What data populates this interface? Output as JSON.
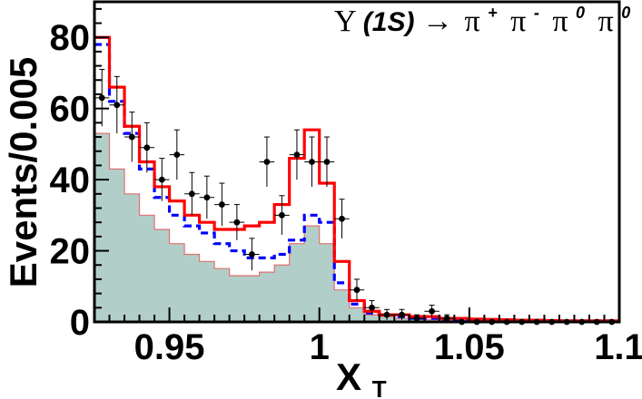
{
  "chart_data": {
    "type": "histogram",
    "title_parts": {
      "upsilon": "Υ",
      "state": "(1S)",
      "arrow": "→",
      "pi1": "π",
      "sup1": "+",
      "pi2": "π",
      "sup2": "-",
      "pi3": "π",
      "sup3": "0",
      "pi4": "π",
      "sup4": "0"
    },
    "xlabel": "X",
    "xlabel_sub": "T",
    "ylabel": "Events/0.005",
    "xlim": [
      0.925,
      1.1
    ],
    "ylim": [
      0,
      90
    ],
    "bin_width": 0.005,
    "x_ticks": [
      0.95,
      1.0,
      1.05,
      1.1
    ],
    "x_tick_labels": [
      "0.95",
      "1",
      "1.05",
      "1.1"
    ],
    "y_ticks": [
      0,
      20,
      40,
      60,
      80
    ],
    "y_tick_labels": [
      "0",
      "20",
      "40",
      "60",
      "80"
    ],
    "bin_centers": [
      0.9275,
      0.9325,
      0.9375,
      0.9425,
      0.9475,
      0.9525,
      0.9575,
      0.9625,
      0.9675,
      0.9725,
      0.9775,
      0.9825,
      0.9875,
      0.9925,
      0.9975,
      1.0025,
      1.0075,
      1.0125,
      1.0175,
      1.0225,
      1.0275,
      1.0325,
      1.0375,
      1.0425,
      1.0475,
      1.0525,
      1.0575,
      1.0625,
      1.0675,
      1.0725,
      1.0775,
      1.0825,
      1.0875,
      1.0925,
      1.0975
    ],
    "series": [
      {
        "role": "data",
        "style": "points-with-errors",
        "color": "#000000",
        "values": [
          63,
          61,
          52,
          49,
          40,
          47,
          36,
          35,
          33,
          28,
          19,
          45,
          30,
          47,
          45,
          45,
          29,
          9,
          4,
          2,
          2,
          1,
          3,
          1,
          0,
          0,
          0,
          0,
          0,
          0,
          0,
          0,
          0,
          0,
          0
        ],
        "errors": [
          8,
          8,
          7,
          7,
          6,
          7,
          6,
          6,
          6,
          5,
          4.5,
          7,
          5.5,
          7,
          7,
          7,
          5.5,
          3,
          2,
          1.5,
          1.5,
          1,
          1.7,
          1,
          0,
          0,
          0,
          0,
          0,
          0,
          0,
          0,
          0,
          0,
          0
        ]
      },
      {
        "role": "total-fit",
        "style": "step-line",
        "color": "#ff0000",
        "values": [
          80,
          66,
          55,
          45,
          38,
          34,
          30,
          28,
          26,
          26,
          27,
          28,
          33,
          46,
          54,
          39,
          17,
          6,
          3,
          2,
          2,
          1.5,
          1.5,
          1,
          1,
          0.8,
          0.7,
          0.6,
          0.5,
          0.5,
          0.4,
          0.3,
          0.3,
          0.3,
          0.3
        ]
      },
      {
        "role": "component",
        "style": "dashed-step-line",
        "color": "#0000ff",
        "values": [
          78,
          62,
          53,
          43,
          35,
          30,
          27,
          25,
          22,
          20,
          18,
          18,
          19,
          23,
          30,
          28,
          11,
          5,
          2.5,
          2,
          1.5,
          1,
          1,
          0.8,
          0.7,
          0.6,
          0.5,
          0.5,
          0.4,
          0.4,
          0.3,
          0.3,
          0.3,
          0.3,
          0.3
        ]
      },
      {
        "role": "background",
        "style": "filled-step",
        "fill": "#b2cec9",
        "edge": "#e07070",
        "values": [
          53,
          43,
          36,
          30,
          26,
          22,
          19,
          17,
          15,
          13,
          13,
          14,
          16,
          22,
          27,
          22,
          9,
          4,
          2,
          1.5,
          1,
          0.8,
          0.6,
          0.5,
          0.4,
          0.3,
          0.3,
          0.3,
          0.2,
          0.2,
          0.2,
          0.2,
          0.2,
          0.2,
          0.2
        ]
      }
    ]
  }
}
